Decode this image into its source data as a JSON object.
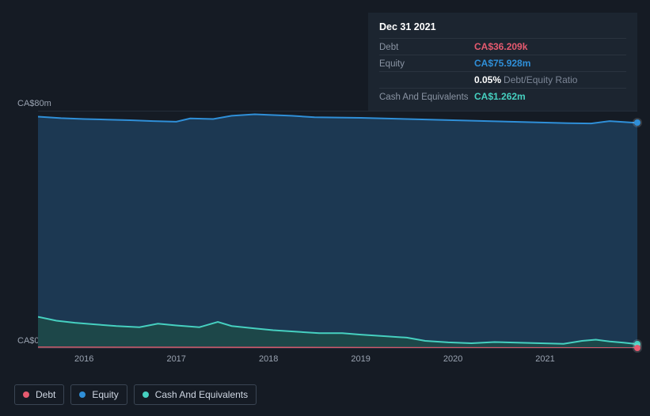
{
  "chart": {
    "type": "area",
    "background_color": "#151b24",
    "grid_color": "#242d3a",
    "axis_label_color": "#9aa3b1",
    "axis_label_fontsize": 11,
    "y": {
      "min": 0,
      "max": 80,
      "labels": {
        "top": "CA$80m",
        "bottom": "CA$0"
      }
    },
    "x": {
      "years": [
        "2016",
        "2017",
        "2018",
        "2019",
        "2020",
        "2021"
      ],
      "domain_start": 2015.5,
      "domain_end": 2022.0
    },
    "series": {
      "equity": {
        "label": "Equity",
        "color": "#2f8fd8",
        "fill": "#1d3d5a",
        "fill_opacity": 0.85,
        "line_width": 2,
        "points": [
          [
            2015.5,
            78.0
          ],
          [
            2015.75,
            77.5
          ],
          [
            2016.0,
            77.2
          ],
          [
            2016.25,
            77.0
          ],
          [
            2016.5,
            76.8
          ],
          [
            2016.75,
            76.5
          ],
          [
            2017.0,
            76.3
          ],
          [
            2017.15,
            77.4
          ],
          [
            2017.4,
            77.2
          ],
          [
            2017.6,
            78.3
          ],
          [
            2017.85,
            78.8
          ],
          [
            2018.0,
            78.6
          ],
          [
            2018.25,
            78.3
          ],
          [
            2018.5,
            77.8
          ],
          [
            2018.75,
            77.7
          ],
          [
            2019.0,
            77.6
          ],
          [
            2019.25,
            77.4
          ],
          [
            2019.5,
            77.2
          ],
          [
            2019.75,
            77.0
          ],
          [
            2020.0,
            76.8
          ],
          [
            2020.25,
            76.6
          ],
          [
            2020.5,
            76.4
          ],
          [
            2020.75,
            76.2
          ],
          [
            2021.0,
            76.0
          ],
          [
            2021.25,
            75.8
          ],
          [
            2021.5,
            75.7
          ],
          [
            2021.7,
            76.5
          ],
          [
            2021.85,
            76.2
          ],
          [
            2022.0,
            75.9
          ]
        ]
      },
      "cash": {
        "label": "Cash And Equivalents",
        "color": "#46d0c0",
        "fill": "#1d4a48",
        "fill_opacity": 0.85,
        "line_width": 2,
        "points": [
          [
            2015.5,
            10.5
          ],
          [
            2015.7,
            9.2
          ],
          [
            2015.9,
            8.5
          ],
          [
            2016.1,
            8.0
          ],
          [
            2016.35,
            7.4
          ],
          [
            2016.6,
            7.0
          ],
          [
            2016.8,
            8.2
          ],
          [
            2017.0,
            7.6
          ],
          [
            2017.25,
            7.0
          ],
          [
            2017.45,
            8.8
          ],
          [
            2017.6,
            7.4
          ],
          [
            2017.85,
            6.6
          ],
          [
            2018.05,
            6.0
          ],
          [
            2018.3,
            5.5
          ],
          [
            2018.55,
            5.0
          ],
          [
            2018.8,
            5.0
          ],
          [
            2019.0,
            4.5
          ],
          [
            2019.25,
            4.0
          ],
          [
            2019.5,
            3.5
          ],
          [
            2019.7,
            2.4
          ],
          [
            2019.95,
            1.9
          ],
          [
            2020.2,
            1.6
          ],
          [
            2020.45,
            2.0
          ],
          [
            2020.7,
            1.8
          ],
          [
            2020.95,
            1.6
          ],
          [
            2021.2,
            1.4
          ],
          [
            2021.4,
            2.4
          ],
          [
            2021.55,
            2.8
          ],
          [
            2021.7,
            2.2
          ],
          [
            2021.85,
            1.8
          ],
          [
            2022.0,
            1.3
          ]
        ]
      },
      "debt": {
        "label": "Debt",
        "color": "#e65a6f",
        "line_width": 1.5,
        "points": [
          [
            2015.5,
            0.3
          ],
          [
            2022.0,
            0.04
          ]
        ]
      }
    },
    "end_markers": [
      {
        "series": "equity",
        "x": 2022.0,
        "y": 75.9,
        "color": "#2f8fd8"
      },
      {
        "series": "cash",
        "x": 2022.0,
        "y": 1.3,
        "color": "#46d0c0"
      },
      {
        "series": "debt",
        "x": 2022.0,
        "y": 0.04,
        "color": "#e65a6f"
      }
    ]
  },
  "tooltip": {
    "date": "Dec 31 2021",
    "rows": [
      {
        "label": "Debt",
        "value": "CA$36.209k",
        "color": "#e65a6f"
      },
      {
        "label": "Equity",
        "value": "CA$75.928m",
        "color": "#2f8fd8"
      },
      {
        "label": "",
        "value": "0.05%",
        "suffix": "Debt/Equity Ratio",
        "color": "#ffffff"
      },
      {
        "label": "Cash And Equivalents",
        "value": "CA$1.262m",
        "color": "#46d0c0"
      }
    ]
  },
  "legend": [
    {
      "key": "debt",
      "label": "Debt",
      "color": "#e65a6f"
    },
    {
      "key": "equity",
      "label": "Equity",
      "color": "#2f8fd8"
    },
    {
      "key": "cash",
      "label": "Cash And Equivalents",
      "color": "#46d0c0"
    }
  ]
}
